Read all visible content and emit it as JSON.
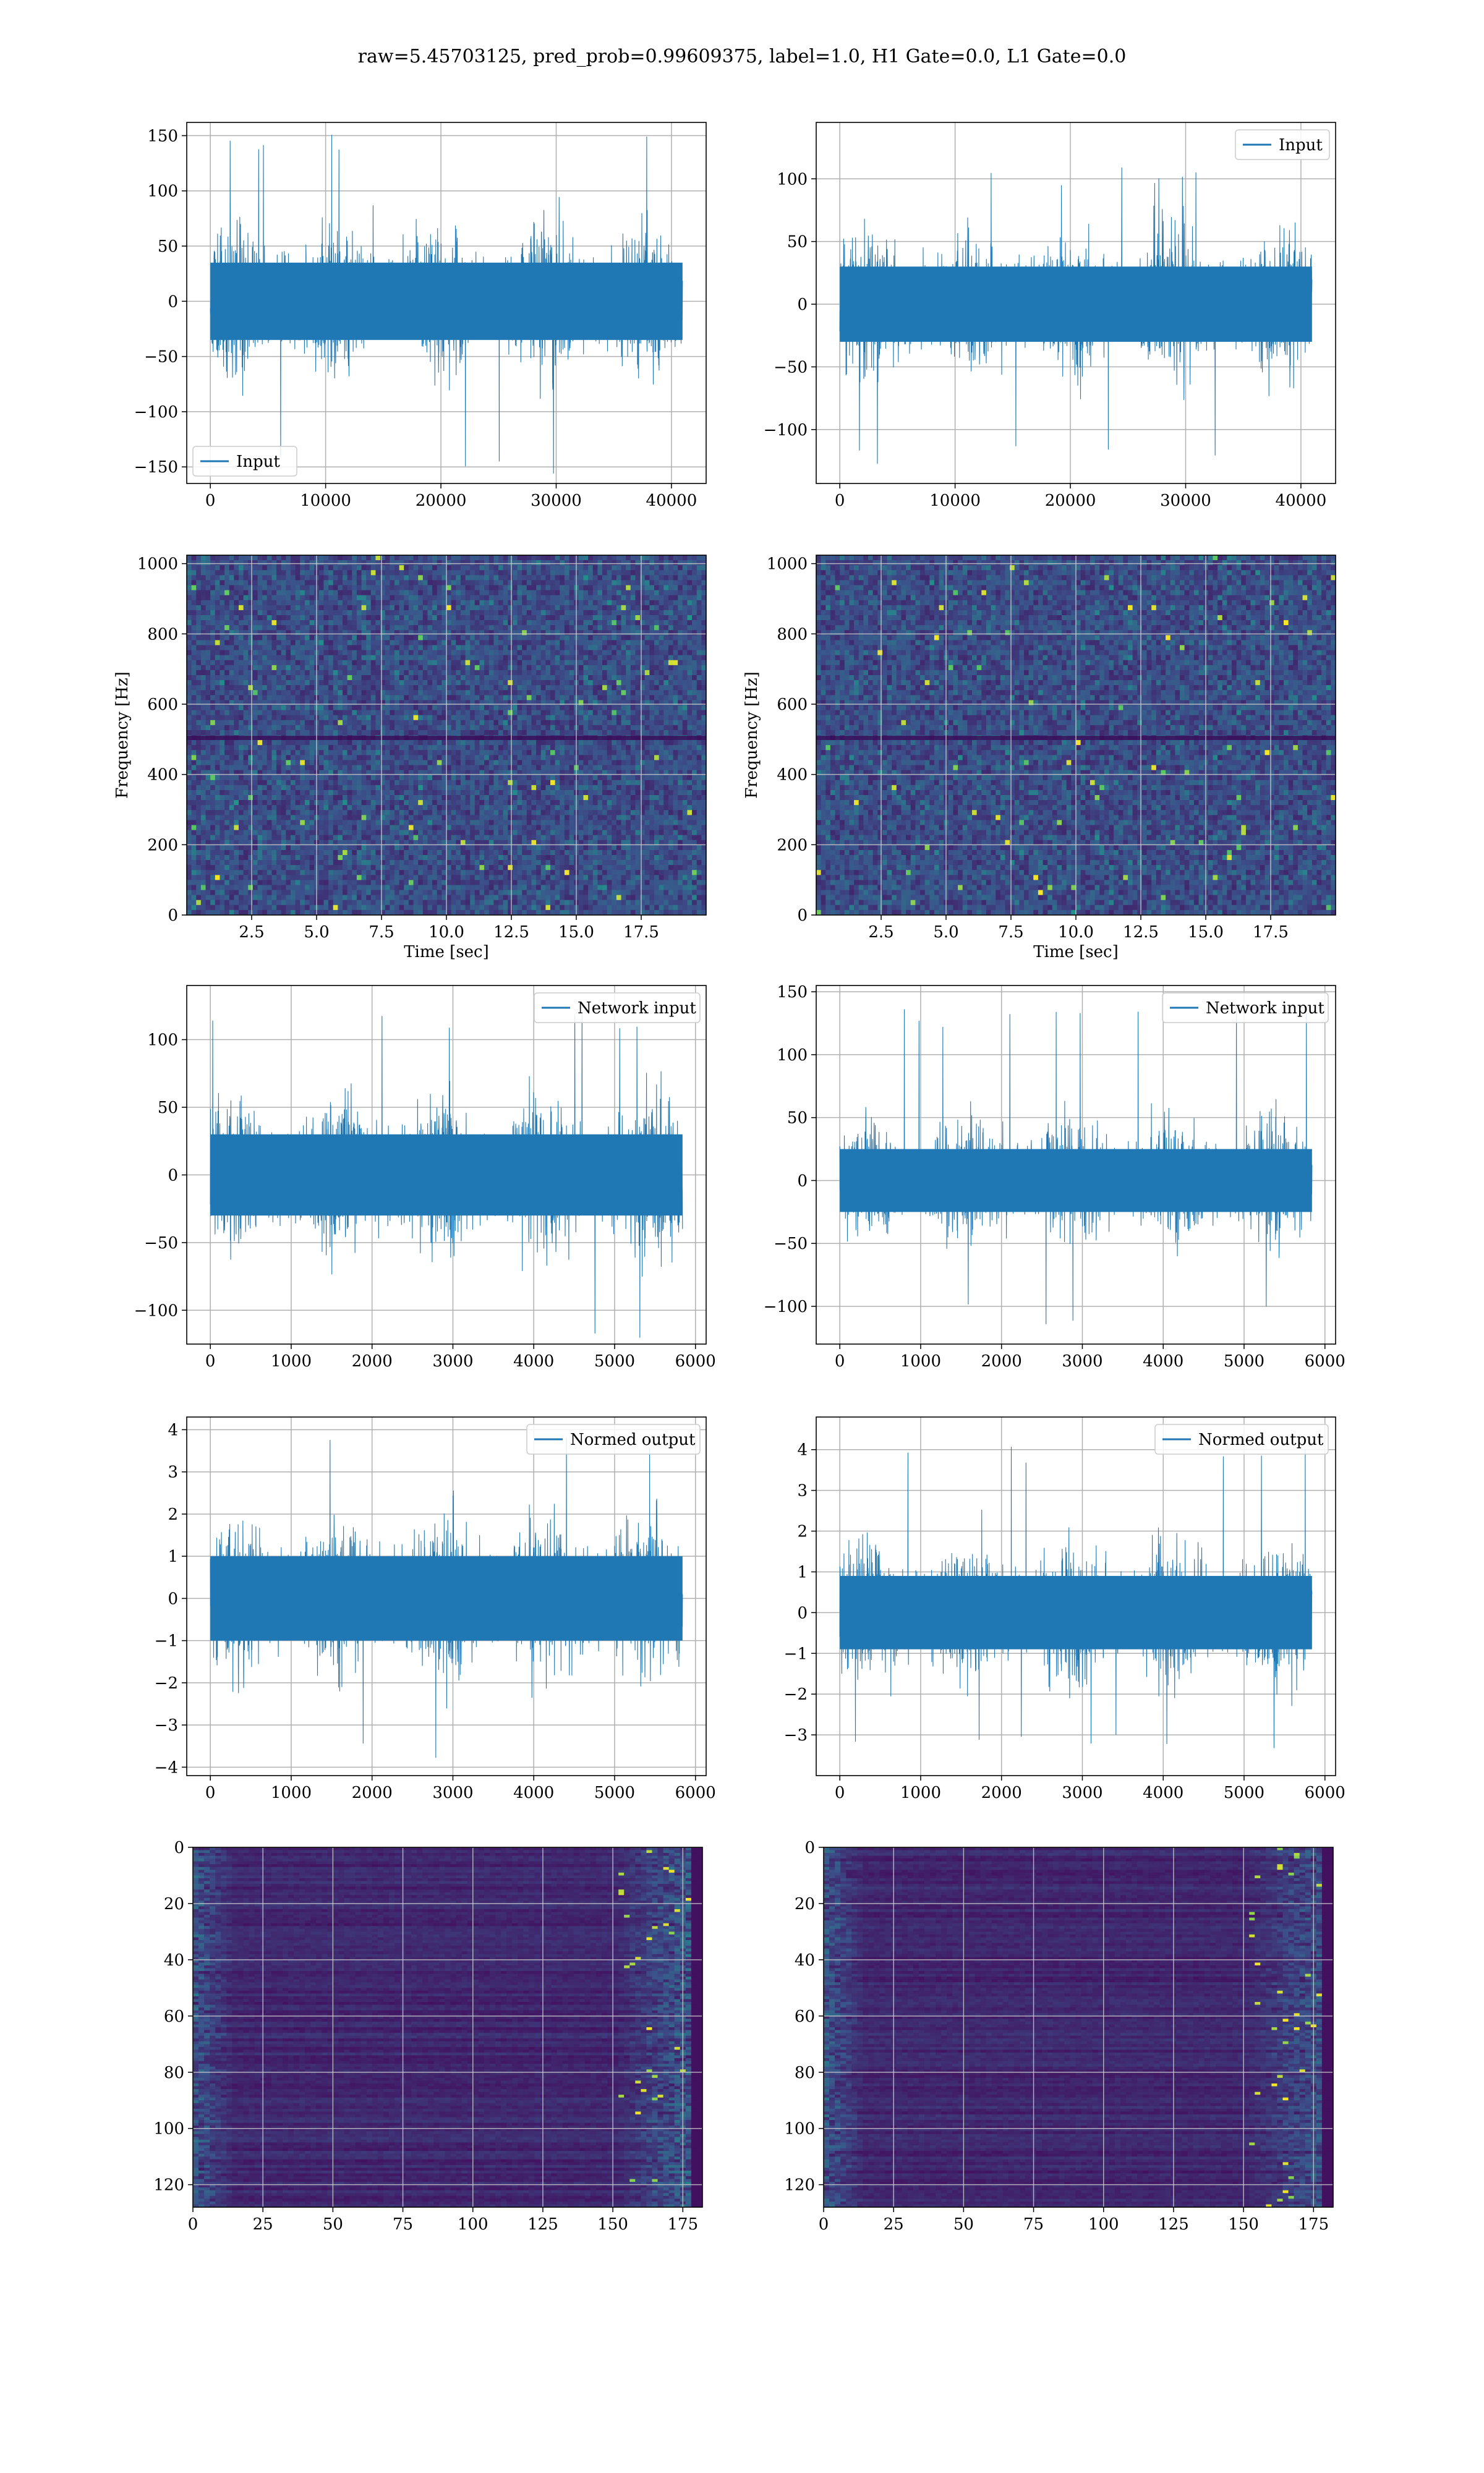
{
  "figure_title": "raw=5.45703125, pred_prob=0.99609375, label=1.0, H1 Gate=0.0, L1 Gate=0.0",
  "colors": {
    "line": "#1f77b4",
    "grid": "#b0b0b0",
    "heat_low": "#440154",
    "heat_mid": "#21918c",
    "heat_high": "#fde725"
  },
  "chart_data": [
    {
      "id": "input-h1",
      "type": "line",
      "legend": "Input",
      "legend_loc": "lower left",
      "xlim": [
        -2048,
        43008
      ],
      "ylim": [
        -165,
        162
      ],
      "xticks": [
        0,
        10000,
        20000,
        30000,
        40000
      ],
      "xtick_labels": [
        "0",
        "10000",
        "20000",
        "30000",
        "40000"
      ],
      "yticks": [
        -150,
        -100,
        -50,
        0,
        50,
        100,
        150
      ],
      "ytick_labels": [
        "−150",
        "−100",
        "−50",
        "0",
        "50",
        "100",
        "150"
      ],
      "series": [
        {
          "name": "Input",
          "n": 40960,
          "envelope": {
            "typical_amplitude": 70,
            "max": 154,
            "min": -158
          }
        }
      ]
    },
    {
      "id": "input-l1",
      "type": "line",
      "legend": "Input",
      "legend_loc": "upper right",
      "xlim": [
        -2048,
        43008
      ],
      "ylim": [
        -143,
        145
      ],
      "xticks": [
        0,
        10000,
        20000,
        30000,
        40000
      ],
      "xtick_labels": [
        "0",
        "10000",
        "20000",
        "30000",
        "40000"
      ],
      "yticks": [
        -100,
        -50,
        0,
        50,
        100
      ],
      "ytick_labels": [
        "−100",
        "−50",
        "0",
        "50",
        "100"
      ],
      "series": [
        {
          "name": "Input",
          "n": 40960,
          "envelope": {
            "typical_amplitude": 60,
            "max": 110,
            "min": -130
          }
        }
      ]
    },
    {
      "id": "spec-h1",
      "type": "heatmap",
      "xlabel": "Time [sec]",
      "ylabel": "Frequency [Hz]",
      "xlim": [
        0,
        20
      ],
      "ylim": [
        0,
        1024
      ],
      "xticks": [
        2.5,
        5,
        7.5,
        10,
        12.5,
        15,
        17.5
      ],
      "xtick_labels": [
        "2.5",
        "5.0",
        "7.5",
        "10.0",
        "12.5",
        "15.0",
        "17.5"
      ],
      "yticks": [
        0,
        200,
        400,
        600,
        800,
        1000
      ],
      "ytick_labels": [
        "0",
        "200",
        "400",
        "600",
        "800",
        "1000"
      ],
      "colormap": "viridis"
    },
    {
      "id": "spec-l1",
      "type": "heatmap",
      "xlabel": "Time [sec]",
      "ylabel": "Frequency [Hz]",
      "xlim": [
        0,
        20
      ],
      "ylim": [
        0,
        1024
      ],
      "xticks": [
        2.5,
        5,
        7.5,
        10,
        12.5,
        15,
        17.5
      ],
      "xtick_labels": [
        "2.5",
        "5.0",
        "7.5",
        "10.0",
        "12.5",
        "15.0",
        "17.5"
      ],
      "yticks": [
        0,
        200,
        400,
        600,
        800,
        1000
      ],
      "ytick_labels": [
        "0",
        "200",
        "400",
        "600",
        "800",
        "1000"
      ],
      "colormap": "viridis"
    },
    {
      "id": "net-h1",
      "type": "line",
      "legend": "Network input",
      "legend_loc": "upper right",
      "xlim": [
        -292,
        6132
      ],
      "ylim": [
        -125,
        140
      ],
      "xticks": [
        0,
        1000,
        2000,
        3000,
        4000,
        5000,
        6000
      ],
      "xtick_labels": [
        "0",
        "1000",
        "2000",
        "3000",
        "4000",
        "5000",
        "6000"
      ],
      "yticks": [
        -100,
        -50,
        0,
        50,
        100
      ],
      "ytick_labels": [
        "−100",
        "−50",
        "0",
        "50",
        "100"
      ],
      "series": [
        {
          "name": "Network input",
          "n": 5840,
          "envelope": {
            "typical_amplitude": 60,
            "max": 125,
            "min": -125
          }
        }
      ]
    },
    {
      "id": "net-l1",
      "type": "line",
      "legend": "Network input",
      "legend_loc": "upper right",
      "xlim": [
        -292,
        6132
      ],
      "ylim": [
        -130,
        155
      ],
      "xticks": [
        0,
        1000,
        2000,
        3000,
        4000,
        5000,
        6000
      ],
      "xtick_labels": [
        "0",
        "1000",
        "2000",
        "3000",
        "4000",
        "5000",
        "6000"
      ],
      "yticks": [
        -100,
        -50,
        0,
        50,
        100,
        150
      ],
      "ytick_labels": [
        "−100",
        "−50",
        "0",
        "50",
        "100",
        "150"
      ],
      "series": [
        {
          "name": "Network input",
          "n": 5840,
          "envelope": {
            "typical_amplitude": 50,
            "max": 143,
            "min": -115
          }
        }
      ]
    },
    {
      "id": "norm-h1",
      "type": "line",
      "legend": "Normed output",
      "legend_loc": "upper right",
      "xlim": [
        -292,
        6132
      ],
      "ylim": [
        -4.2,
        4.3
      ],
      "xticks": [
        0,
        1000,
        2000,
        3000,
        4000,
        5000,
        6000
      ],
      "xtick_labels": [
        "0",
        "1000",
        "2000",
        "3000",
        "4000",
        "5000",
        "6000"
      ],
      "yticks": [
        -4,
        -3,
        -2,
        -1,
        0,
        1,
        2,
        3,
        4
      ],
      "ytick_labels": [
        "−4",
        "−3",
        "−2",
        "−1",
        "0",
        "1",
        "2",
        "3",
        "4"
      ],
      "series": [
        {
          "name": "Normed output",
          "n": 5840,
          "envelope": {
            "typical_amplitude": 2,
            "max": 3.9,
            "min": -3.8
          }
        }
      ]
    },
    {
      "id": "norm-l1",
      "type": "line",
      "legend": "Normed output",
      "legend_loc": "upper right",
      "xlim": [
        -292,
        6132
      ],
      "ylim": [
        -4.0,
        4.8
      ],
      "xticks": [
        0,
        1000,
        2000,
        3000,
        4000,
        5000,
        6000
      ],
      "xtick_labels": [
        "0",
        "1000",
        "2000",
        "3000",
        "4000",
        "5000",
        "6000"
      ],
      "yticks": [
        -3,
        -2,
        -1,
        0,
        1,
        2,
        3,
        4
      ],
      "ytick_labels": [
        "−3",
        "−2",
        "−1",
        "0",
        "1",
        "2",
        "3",
        "4"
      ],
      "series": [
        {
          "name": "Normed output",
          "n": 5840,
          "envelope": {
            "typical_amplitude": 1.8,
            "max": 4.3,
            "min": -3.5
          }
        }
      ]
    },
    {
      "id": "feat-h1",
      "type": "heatmap",
      "xlim": [
        0,
        182
      ],
      "ylim": [
        128,
        0
      ],
      "xticks": [
        0,
        25,
        50,
        75,
        100,
        125,
        150,
        175
      ],
      "xtick_labels": [
        "0",
        "25",
        "50",
        "75",
        "100",
        "125",
        "150",
        "175"
      ],
      "yticks": [
        0,
        20,
        40,
        60,
        80,
        100,
        120
      ],
      "ytick_labels": [
        "0",
        "20",
        "40",
        "60",
        "80",
        "100",
        "120"
      ],
      "colormap": "viridis"
    },
    {
      "id": "feat-l1",
      "type": "heatmap",
      "xlim": [
        0,
        182
      ],
      "ylim": [
        128,
        0
      ],
      "xticks": [
        0,
        25,
        50,
        75,
        100,
        125,
        150,
        175
      ],
      "xtick_labels": [
        "0",
        "25",
        "50",
        "75",
        "100",
        "125",
        "150",
        "175"
      ],
      "yticks": [
        0,
        20,
        40,
        60,
        80,
        100,
        120
      ],
      "ytick_labels": [
        "0",
        "20",
        "40",
        "60",
        "80",
        "100",
        "120"
      ],
      "colormap": "viridis"
    }
  ]
}
